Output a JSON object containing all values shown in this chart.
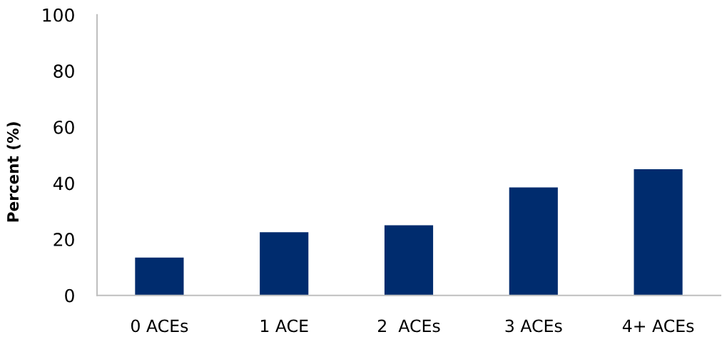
{
  "chart_data": {
    "type": "bar",
    "ylabel": "Percent (%)",
    "categories": [
      "0 ACEs",
      "1 ACE",
      "2  ACEs",
      "3 ACEs",
      "4+ ACEs"
    ],
    "values": [
      13.5,
      22.5,
      25,
      38.5,
      45
    ],
    "color": "#002c6e",
    "ylim": [
      0,
      100
    ],
    "yticks": [
      0,
      20,
      40,
      60,
      80,
      100
    ],
    "grid": false,
    "legend": false
  }
}
